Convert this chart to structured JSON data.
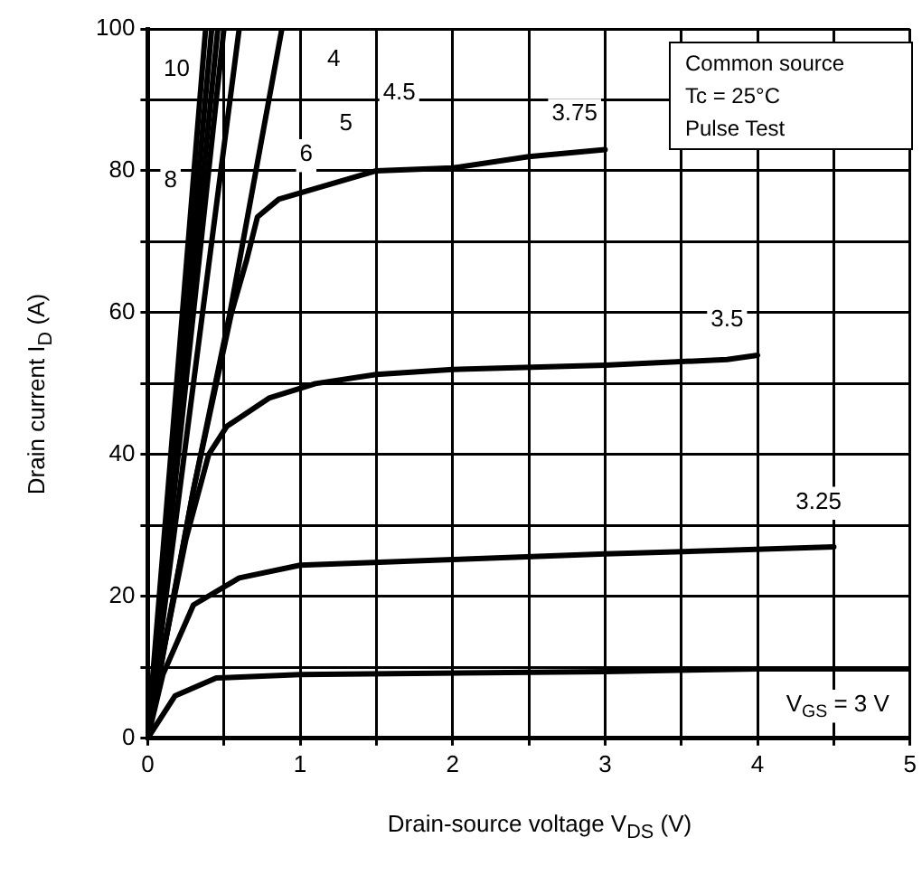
{
  "chart_data": {
    "type": "line",
    "xlabel": "Drain-source voltage  V$_{DS}$  (V)",
    "ylabel": "Drain current  I$_{D}$  (A)",
    "xlim": [
      0,
      5
    ],
    "ylim": [
      0,
      100
    ],
    "xticks": [
      0,
      {
        "value": 0.5,
        "label": null
      },
      1,
      {
        "value": 1.5,
        "label": null
      },
      2,
      {
        "value": 2.5,
        "label": null
      },
      3,
      {
        "value": 3.5,
        "label": null
      },
      4,
      {
        "value": 4.5,
        "label": null
      },
      5
    ],
    "yticks": [
      0,
      {
        "value": 10,
        "label": null
      },
      20,
      {
        "value": 30,
        "label": null
      },
      40,
      {
        "value": 50,
        "label": null
      },
      60,
      {
        "value": 70,
        "label": null
      },
      80,
      {
        "value": 90,
        "label": null
      },
      100
    ],
    "grid": true,
    "legend": false,
    "marker": "none",
    "line_style": "solid",
    "series": [
      {
        "color": "#000000",
        "x": [
          0,
          0.38
        ],
        "values": [
          0,
          100
        ]
      },
      {
        "color": "#000000",
        "x": [
          0,
          0.42
        ],
        "values": [
          0,
          100
        ]
      },
      {
        "color": "#000000",
        "x": [
          0,
          0.46
        ],
        "values": [
          0,
          100
        ]
      },
      {
        "color": "#000000",
        "x": [
          0,
          0.5
        ],
        "values": [
          0,
          100
        ]
      },
      {
        "color": "#000000",
        "x": [
          0,
          0.3,
          0.6
        ],
        "values": [
          0,
          50,
          100
        ]
      },
      {
        "color": "#000000",
        "x": [
          0,
          0.3,
          0.54,
          0.88
        ],
        "values": [
          0,
          35,
          60,
          100
        ]
      },
      {
        "color": "#000000",
        "x": [
          0,
          0.1,
          0.3,
          0.45,
          0.55,
          0.65,
          0.72,
          0.86,
          1.5,
          2,
          2.5,
          3
        ],
        "values": [
          0,
          12,
          35,
          50,
          60,
          67.5,
          73.5,
          76,
          80,
          80.4,
          82,
          83
        ]
      },
      {
        "color": "#000000",
        "x": [
          0,
          0.1,
          0.25,
          0.4,
          0.52,
          0.8,
          1.1,
          1.5,
          2,
          3,
          3.8,
          4
        ],
        "values": [
          0,
          12,
          28,
          40,
          44,
          48,
          50,
          51.3,
          52,
          52.6,
          53.4,
          54
        ]
      },
      {
        "color": "#000000",
        "x": [
          0,
          0.1,
          0.3,
          0.6,
          1,
          2,
          3,
          3.8,
          4.5
        ],
        "values": [
          0,
          9,
          18.8,
          22.6,
          24.4,
          25.2,
          26,
          26.5,
          27
        ]
      },
      {
        "name": "V$_{GS}$ = 3 V",
        "color": "#000000",
        "x": [
          0,
          0.18,
          0.45,
          1,
          3,
          4,
          5
        ],
        "values": [
          0,
          6,
          8.5,
          9,
          9.4,
          9.8,
          9.8
        ]
      }
    ],
    "annotations": [
      "Common source",
      "Tc = 25°C",
      "Pulse Test",
      {
        "text": "10",
        "x": 0.19,
        "y": 94.3
      },
      {
        "text": "8",
        "x": 0.15,
        "y": 78.6
      },
      {
        "text": "6",
        "x": 1.04,
        "y": 82.3
      },
      {
        "text": "5",
        "x": 1.3,
        "y": 86.6
      },
      {
        "text": "4.5",
        "x": 1.65,
        "y": 91
      },
      {
        "text": "4",
        "x": 1.22,
        "y": 95.7
      },
      {
        "text": "3.75",
        "x": 2.8,
        "y": 88
      },
      {
        "text": "3.5",
        "x": 3.8,
        "y": 59
      },
      {
        "text": "3.25",
        "x": 4.4,
        "y": 33.3
      }
    ]
  }
}
